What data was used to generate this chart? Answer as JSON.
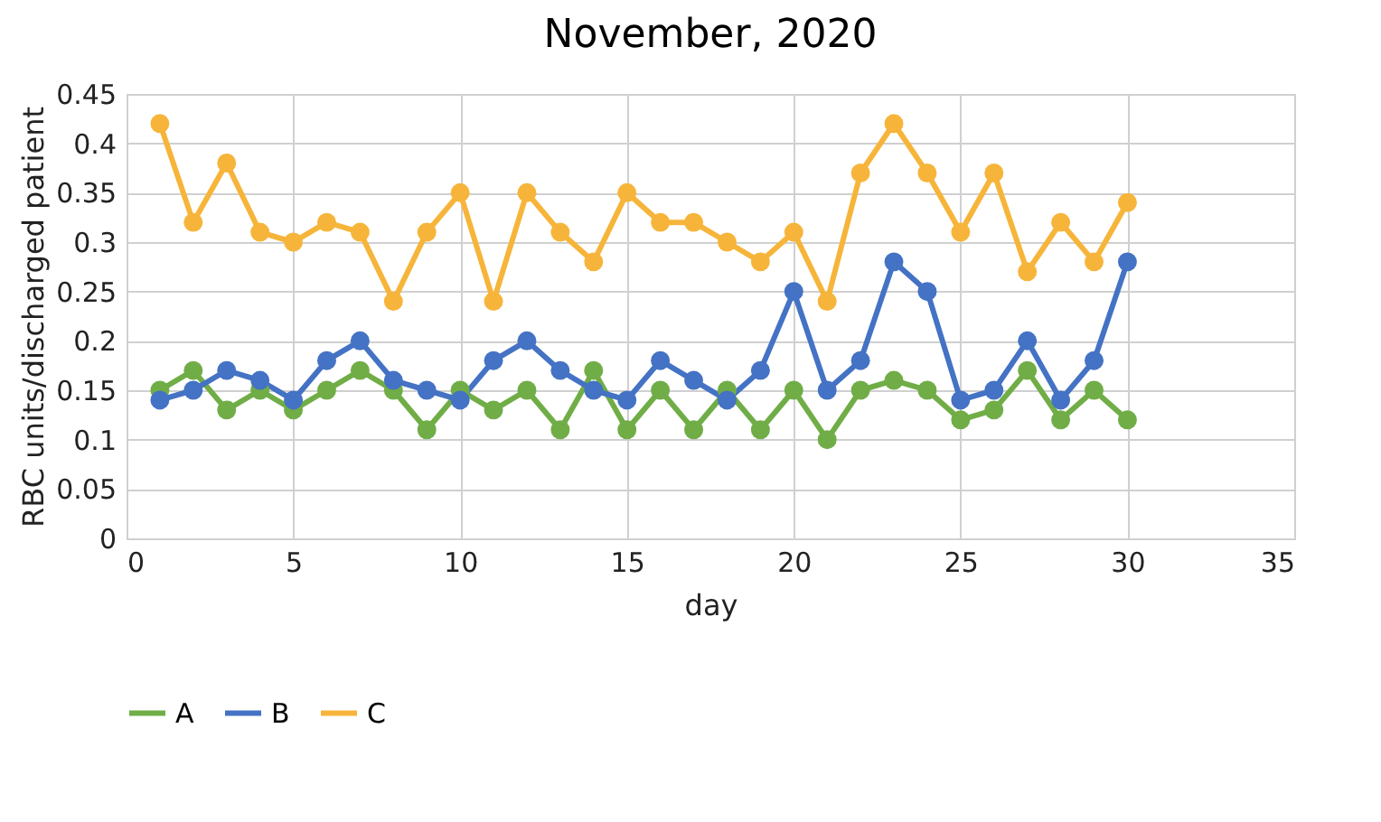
{
  "chart_data": {
    "type": "line",
    "title": "November, 2020",
    "xlabel": "day",
    "ylabel": "RBC units/discharged patient",
    "x": [
      1,
      2,
      3,
      4,
      5,
      6,
      7,
      8,
      9,
      10,
      11,
      12,
      13,
      14,
      15,
      16,
      17,
      18,
      19,
      20,
      21,
      22,
      23,
      24,
      25,
      26,
      27,
      28,
      29,
      30
    ],
    "series": [
      {
        "name": "A",
        "color": "#70ad47",
        "values": [
          0.15,
          0.17,
          0.13,
          0.15,
          0.13,
          0.15,
          0.17,
          0.15,
          0.11,
          0.15,
          0.13,
          0.15,
          0.11,
          0.17,
          0.11,
          0.15,
          0.11,
          0.15,
          0.11,
          0.15,
          0.1,
          0.15,
          0.16,
          0.15,
          0.12,
          0.13,
          0.17,
          0.12,
          0.15,
          0.12
        ]
      },
      {
        "name": "B",
        "color": "#4472c4",
        "values": [
          0.14,
          0.15,
          0.17,
          0.16,
          0.14,
          0.18,
          0.2,
          0.16,
          0.15,
          0.14,
          0.18,
          0.2,
          0.17,
          0.15,
          0.14,
          0.18,
          0.16,
          0.14,
          0.17,
          0.25,
          0.15,
          0.18,
          0.28,
          0.25,
          0.14,
          0.15,
          0.2,
          0.14,
          0.18,
          0.28
        ]
      },
      {
        "name": "C",
        "color": "#f6b53a",
        "values": [
          0.42,
          0.32,
          0.38,
          0.31,
          0.3,
          0.32,
          0.31,
          0.24,
          0.31,
          0.35,
          0.24,
          0.35,
          0.31,
          0.28,
          0.35,
          0.32,
          0.32,
          0.3,
          0.28,
          0.31,
          0.24,
          0.37,
          0.42,
          0.37,
          0.31,
          0.37,
          0.27,
          0.32,
          0.28,
          0.34
        ]
      }
    ],
    "xlim": [
      0,
      35
    ],
    "xticks": [
      0,
      5,
      10,
      15,
      20,
      25,
      30,
      35
    ],
    "ylim": [
      0,
      0.45
    ],
    "yticks": [
      0,
      0.05,
      0.1,
      0.15,
      0.2,
      0.25,
      0.3,
      0.35,
      0.4,
      0.45
    ],
    "grid": true,
    "legend": "bottom",
    "marker": "circle",
    "line_style": "solid"
  }
}
